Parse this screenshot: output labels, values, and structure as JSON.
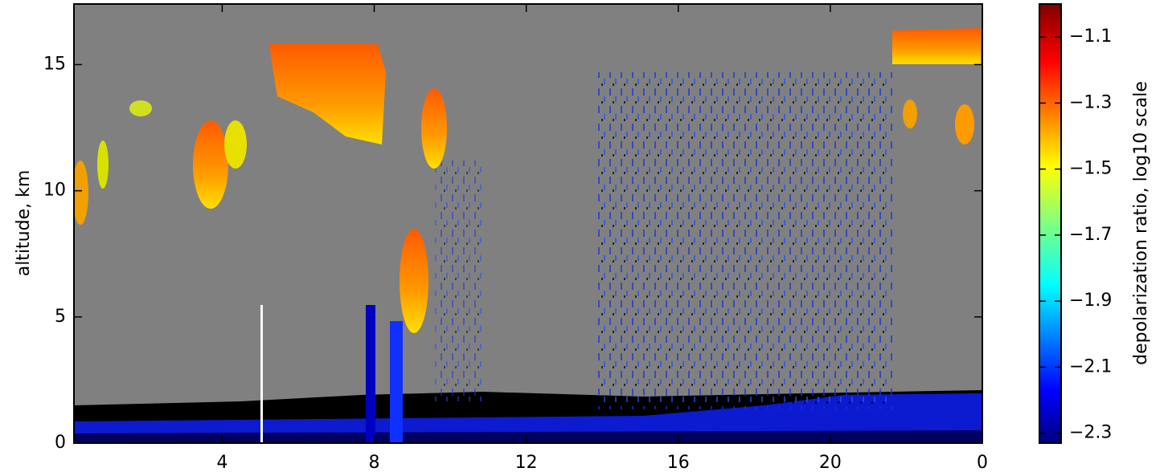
{
  "chart_data": {
    "type": "heatmap",
    "ylabel": "altitude, km",
    "colorbar_label": "depolarization ratio, log10 scale",
    "xlim": [
      0.1,
      24
    ],
    "xticks": [
      4,
      8,
      12,
      16,
      20,
      {
        "value": 24,
        "label": "0"
      }
    ],
    "ylim": [
      0,
      17.4
    ],
    "yticks": [
      0,
      5,
      10,
      15
    ],
    "colorbar_lim": [
      -2.33,
      -1.0
    ],
    "colorbar_ticks": [
      {
        "value": -1.1,
        "label": "−1.1"
      },
      {
        "value": -1.3,
        "label": "−1.3"
      },
      {
        "value": -1.5,
        "label": "−1.5"
      },
      {
        "value": -1.7,
        "label": "−1.7"
      },
      {
        "value": -1.9,
        "label": "−1.9"
      },
      {
        "value": -2.1,
        "label": "−2.1"
      },
      {
        "value": -2.3,
        "label": "−2.3"
      }
    ]
  }
}
